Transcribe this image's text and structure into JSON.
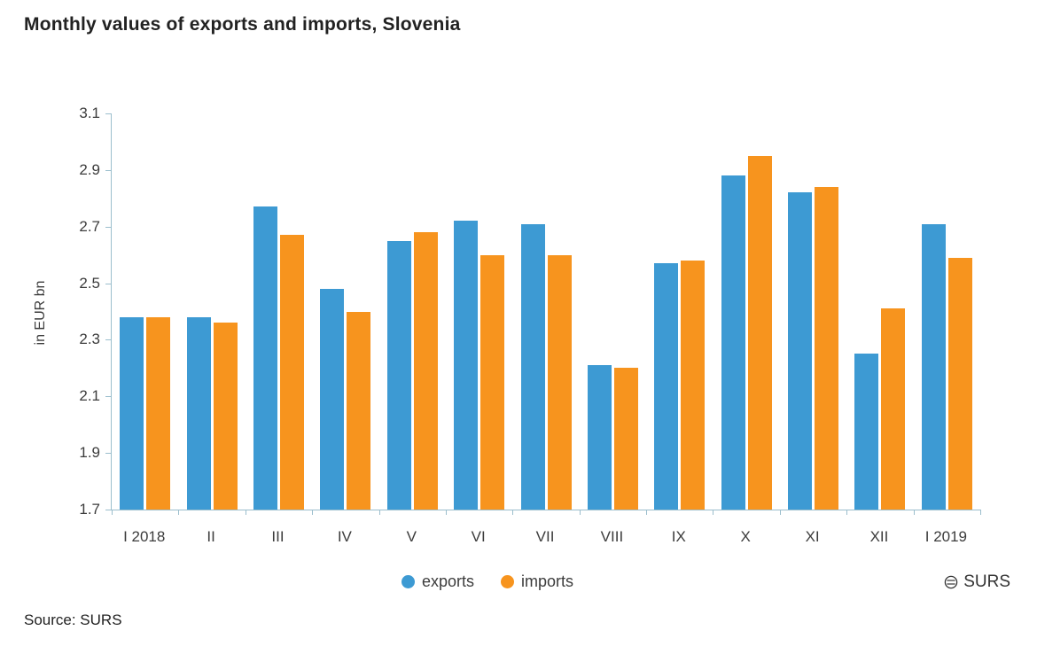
{
  "title": "Monthly values of exports and imports, Slovenia",
  "source": "Source: SURS",
  "logo_text": "SURS",
  "chart_data": {
    "type": "bar",
    "categories": [
      "I 2018",
      "II",
      "III",
      "IV",
      "V",
      "VI",
      "VII",
      "VIII",
      "IX",
      "X",
      "XI",
      "XII",
      "I 2019"
    ],
    "series": [
      {
        "name": "exports",
        "color": "#3d9ad3",
        "values": [
          2.38,
          2.38,
          2.77,
          2.48,
          2.65,
          2.72,
          2.71,
          2.21,
          2.57,
          2.88,
          2.82,
          2.25,
          2.71
        ]
      },
      {
        "name": "imports",
        "color": "#f7941e",
        "values": [
          2.38,
          2.36,
          2.67,
          2.4,
          2.68,
          2.6,
          2.6,
          2.2,
          2.58,
          2.95,
          2.84,
          2.41,
          2.59
        ]
      }
    ],
    "xlabel": "",
    "ylabel": "in EUR bn",
    "ylim": [
      1.7,
      3.1
    ],
    "yticks": [
      1.7,
      1.9,
      2.1,
      2.3,
      2.5,
      2.7,
      2.9,
      3.1
    ],
    "legend_position": "bottom",
    "grid": false,
    "axis_color": "#9bbecd"
  }
}
